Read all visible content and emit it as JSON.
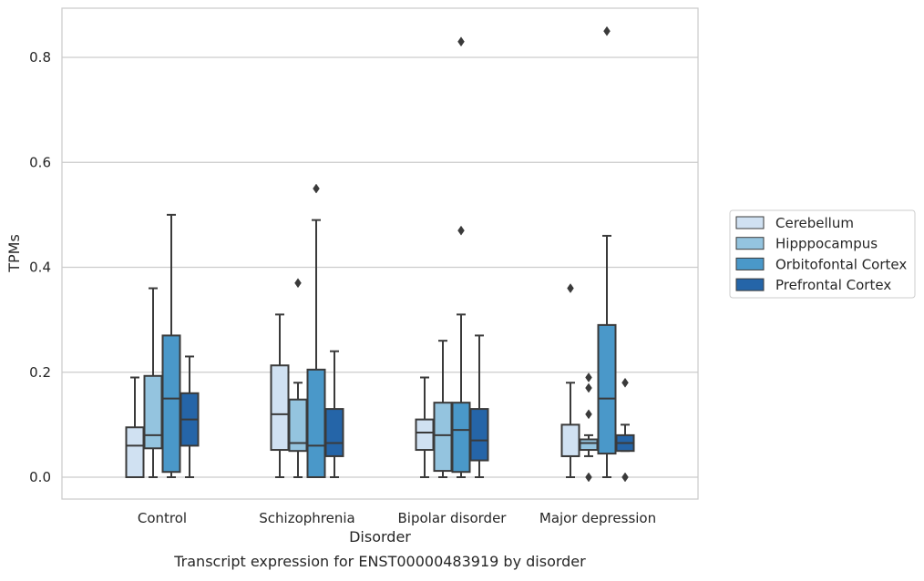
{
  "chart_data": {
    "type": "box",
    "xlabel": "Disorder",
    "ylabel": "TPMs",
    "caption": "Transcript expression for ENST00000483919 by disorder",
    "ylim": [
      -0.04,
      0.9
    ],
    "yticks": [
      0.0,
      0.2,
      0.4,
      0.6,
      0.8
    ],
    "ytick_labels": [
      "0.0",
      "0.2",
      "0.4",
      "0.6",
      "0.8"
    ],
    "grid": "horizontal",
    "legend_position": "right",
    "categories": [
      "Control",
      "Schizophrenia",
      "Bipolar disorder",
      "Major depression"
    ],
    "series": [
      {
        "name": "Cerebellum",
        "color": "#d0e1f2",
        "boxes": [
          {
            "q1": 0.0,
            "median": 0.06,
            "q3": 0.095,
            "whisker_low": 0.0,
            "whisker_high": 0.19,
            "outliers": []
          },
          {
            "q1": 0.052,
            "median": 0.12,
            "q3": 0.213,
            "whisker_low": 0.0,
            "whisker_high": 0.31,
            "outliers": []
          },
          {
            "q1": 0.052,
            "median": 0.085,
            "q3": 0.11,
            "whisker_low": 0.0,
            "whisker_high": 0.19,
            "outliers": []
          },
          {
            "q1": 0.04,
            "median": 0.04,
            "q3": 0.1,
            "whisker_low": 0.0,
            "whisker_high": 0.18,
            "outliers": [
              0.36
            ]
          }
        ]
      },
      {
        "name": "Hipppocampus",
        "color": "#94c4df",
        "boxes": [
          {
            "q1": 0.055,
            "median": 0.08,
            "q3": 0.193,
            "whisker_low": 0.0,
            "whisker_high": 0.36,
            "outliers": []
          },
          {
            "q1": 0.05,
            "median": 0.065,
            "q3": 0.148,
            "whisker_low": 0.0,
            "whisker_high": 0.18,
            "outliers": [
              0.37
            ]
          },
          {
            "q1": 0.012,
            "median": 0.08,
            "q3": 0.142,
            "whisker_low": 0.0,
            "whisker_high": 0.26,
            "outliers": []
          },
          {
            "q1": 0.052,
            "median": 0.065,
            "q3": 0.072,
            "whisker_low": 0.04,
            "whisker_high": 0.08,
            "outliers": [
              0.19,
              0.17,
              0.12,
              0.0
            ]
          }
        ]
      },
      {
        "name": "Orbitofontal Cortex",
        "color": "#4a98c9",
        "boxes": [
          {
            "q1": 0.01,
            "median": 0.15,
            "q3": 0.27,
            "whisker_low": 0.0,
            "whisker_high": 0.5,
            "outliers": []
          },
          {
            "q1": 0.0,
            "median": 0.06,
            "q3": 0.205,
            "whisker_low": 0.0,
            "whisker_high": 0.49,
            "outliers": [
              0.55
            ]
          },
          {
            "q1": 0.01,
            "median": 0.09,
            "q3": 0.142,
            "whisker_low": 0.0,
            "whisker_high": 0.31,
            "outliers": [
              0.83,
              0.47
            ]
          },
          {
            "q1": 0.045,
            "median": 0.15,
            "q3": 0.29,
            "whisker_low": 0.0,
            "whisker_high": 0.46,
            "outliers": [
              0.85
            ]
          }
        ]
      },
      {
        "name": "Prefrontal Cortex",
        "color": "#2565a8",
        "boxes": [
          {
            "q1": 0.06,
            "median": 0.11,
            "q3": 0.16,
            "whisker_low": 0.0,
            "whisker_high": 0.23,
            "outliers": []
          },
          {
            "q1": 0.04,
            "median": 0.065,
            "q3": 0.13,
            "whisker_low": 0.0,
            "whisker_high": 0.24,
            "outliers": []
          },
          {
            "q1": 0.032,
            "median": 0.07,
            "q3": 0.13,
            "whisker_low": 0.0,
            "whisker_high": 0.27,
            "outliers": []
          },
          {
            "q1": 0.05,
            "median": 0.065,
            "q3": 0.08,
            "whisker_low": 0.05,
            "whisker_high": 0.1,
            "outliers": [
              0.18,
              0.0
            ]
          }
        ]
      }
    ]
  }
}
